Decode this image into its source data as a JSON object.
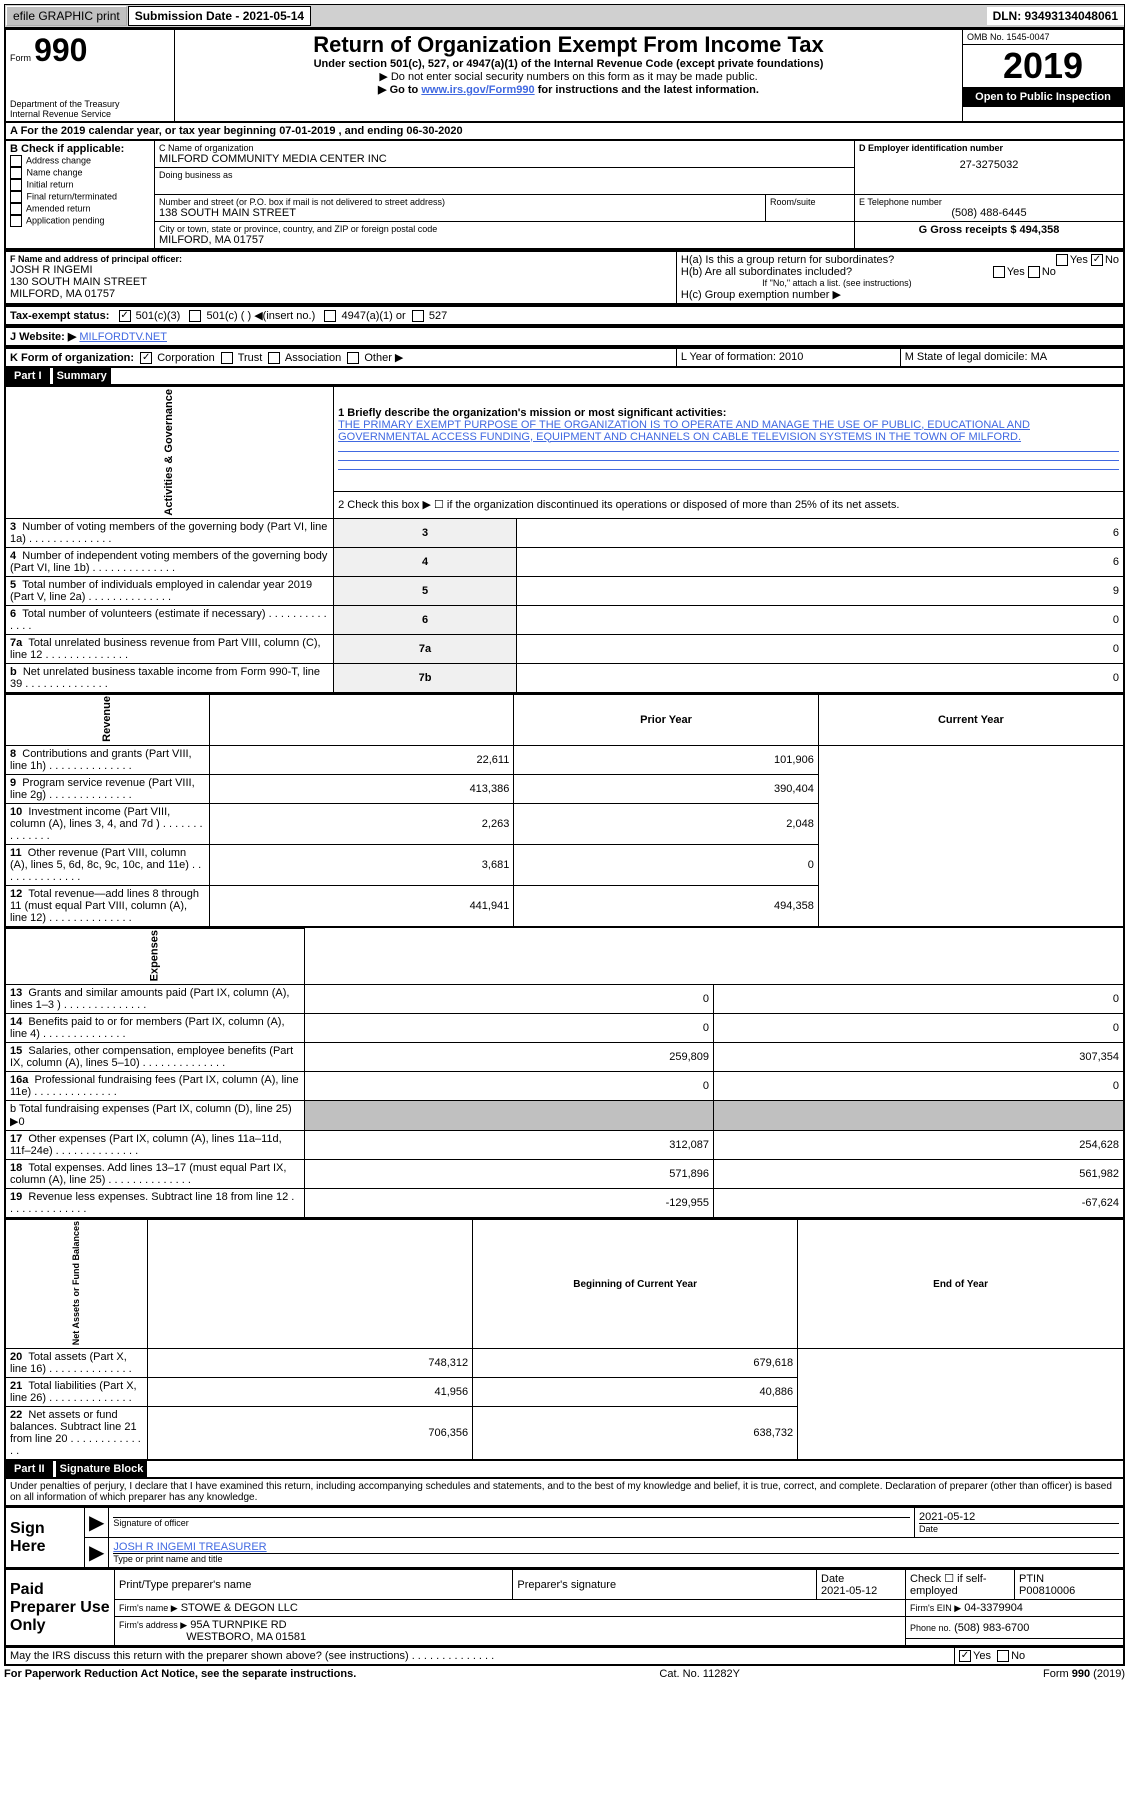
{
  "topbar": {
    "efile": "efile GRAPHIC print",
    "submission_label": "Submission Date - 2021-05-14",
    "dln": "DLN: 93493134048061"
  },
  "header": {
    "form_label": "Form",
    "form_number": "990",
    "dept": "Department of the Treasury",
    "irs": "Internal Revenue Service",
    "title": "Return of Organization Exempt From Income Tax",
    "subtitle": "Under section 501(c), 527, or 4947(a)(1) of the Internal Revenue Code (except private foundations)",
    "note1": "▶ Do not enter social security numbers on this form as it may be made public.",
    "note2_pre": "▶ Go to ",
    "note2_link": "www.irs.gov/Form990",
    "note2_post": " for instructions and the latest information.",
    "omb": "OMB No. 1545-0047",
    "year": "2019",
    "open": "Open to Public Inspection"
  },
  "sectionA": {
    "line": "A For the 2019 calendar year, or tax year beginning 07-01-2019   , and ending 06-30-2020"
  },
  "B": {
    "label": "B Check if applicable:",
    "opts": [
      "Address change",
      "Name change",
      "Initial return",
      "Final return/terminated",
      "Amended return",
      "Application pending"
    ]
  },
  "C": {
    "name_label": "C Name of organization",
    "name": "MILFORD COMMUNITY MEDIA CENTER INC",
    "dba_label": "Doing business as",
    "street_label": "Number and street (or P.O. box if mail is not delivered to street address)",
    "room_label": "Room/suite",
    "street": "138 SOUTH MAIN STREET",
    "city_label": "City or town, state or province, country, and ZIP or foreign postal code",
    "city": "MILFORD, MA  01757"
  },
  "D": {
    "label": "D Employer identification number",
    "value": "27-3275032"
  },
  "E": {
    "label": "E Telephone number",
    "value": "(508) 488-6445"
  },
  "G": {
    "label": "G Gross receipts $ 494,358"
  },
  "F": {
    "label": "F  Name and address of principal officer:",
    "name": "JOSH R INGEMI",
    "addr1": "130 SOUTH MAIN STREET",
    "addr2": "MILFORD, MA  01757"
  },
  "H": {
    "a": "H(a)  Is this a group return for subordinates?",
    "b": "H(b)  Are all subordinates included?",
    "b_note": "If \"No,\" attach a list. (see instructions)",
    "c": "H(c)  Group exemption number ▶"
  },
  "I": {
    "label": "Tax-exempt status:",
    "opt1": "501(c)(3)",
    "opt2": "501(c) (  ) ◀(insert no.)",
    "opt3": "4947(a)(1) or",
    "opt4": "527"
  },
  "J": {
    "label": "J   Website: ▶",
    "value": "MILFORDTV.NET"
  },
  "K": {
    "label": "K Form of organization:",
    "opts": [
      "Corporation",
      "Trust",
      "Association",
      "Other ▶"
    ]
  },
  "L": {
    "label": "L Year of formation: 2010"
  },
  "M": {
    "label": "M State of legal domicile: MA"
  },
  "part1": {
    "header": "Part I",
    "title": "Summary"
  },
  "activities": {
    "label": "Activities & Governance",
    "l1_label": "1  Briefly describe the organization's mission or most significant activities:",
    "l1_text": "THE PRIMARY EXEMPT PURPOSE OF THE ORGANIZATION IS TO OPERATE AND MANAGE THE USE OF PUBLIC, EDUCATIONAL AND GOVERNMENTAL ACCESS FUNDING, EQUIPMENT AND CHANNELS ON CABLE TELEVISION SYSTEMS IN THE TOWN OF MILFORD.",
    "l2": "2   Check this box ▶ ☐  if the organization discontinued its operations or disposed of more than 25% of its net assets.",
    "rows": [
      {
        "n": "3",
        "t": "Number of voting members of the governing body (Part VI, line 1a)",
        "box": "3",
        "v": "6"
      },
      {
        "n": "4",
        "t": "Number of independent voting members of the governing body (Part VI, line 1b)",
        "box": "4",
        "v": "6"
      },
      {
        "n": "5",
        "t": "Total number of individuals employed in calendar year 2019 (Part V, line 2a)",
        "box": "5",
        "v": "9"
      },
      {
        "n": "6",
        "t": "Total number of volunteers (estimate if necessary)",
        "box": "6",
        "v": "0"
      },
      {
        "n": "7a",
        "t": "Total unrelated business revenue from Part VIII, column (C), line 12",
        "box": "7a",
        "v": "0"
      },
      {
        "n": "b",
        "t": "Net unrelated business taxable income from Form 990-T, line 39",
        "box": "7b",
        "v": "0"
      }
    ]
  },
  "revenue": {
    "label": "Revenue",
    "header_prior": "Prior Year",
    "header_current": "Current Year",
    "rows": [
      {
        "n": "8",
        "t": "Contributions and grants (Part VIII, line 1h)",
        "p": "22,611",
        "c": "101,906"
      },
      {
        "n": "9",
        "t": "Program service revenue (Part VIII, line 2g)",
        "p": "413,386",
        "c": "390,404"
      },
      {
        "n": "10",
        "t": "Investment income (Part VIII, column (A), lines 3, 4, and 7d )",
        "p": "2,263",
        "c": "2,048"
      },
      {
        "n": "11",
        "t": "Other revenue (Part VIII, column (A), lines 5, 6d, 8c, 9c, 10c, and 11e)",
        "p": "3,681",
        "c": "0"
      },
      {
        "n": "12",
        "t": "Total revenue—add lines 8 through 11 (must equal Part VIII, column (A), line 12)",
        "p": "441,941",
        "c": "494,358"
      }
    ]
  },
  "expenses": {
    "label": "Expenses",
    "rows": [
      {
        "n": "13",
        "t": "Grants and similar amounts paid (Part IX, column (A), lines 1–3 )",
        "p": "0",
        "c": "0"
      },
      {
        "n": "14",
        "t": "Benefits paid to or for members (Part IX, column (A), line 4)",
        "p": "0",
        "c": "0"
      },
      {
        "n": "15",
        "t": "Salaries, other compensation, employee benefits (Part IX, column (A), lines 5–10)",
        "p": "259,809",
        "c": "307,354"
      },
      {
        "n": "16a",
        "t": "Professional fundraising fees (Part IX, column (A), line 11e)",
        "p": "0",
        "c": "0"
      }
    ],
    "l16b": "b  Total fundraising expenses (Part IX, column (D), line 25) ▶0",
    "rows2": [
      {
        "n": "17",
        "t": "Other expenses (Part IX, column (A), lines 11a–11d, 11f–24e)",
        "p": "312,087",
        "c": "254,628"
      },
      {
        "n": "18",
        "t": "Total expenses. Add lines 13–17 (must equal Part IX, column (A), line 25)",
        "p": "571,896",
        "c": "561,982"
      },
      {
        "n": "19",
        "t": "Revenue less expenses. Subtract line 18 from line 12",
        "p": "-129,955",
        "c": "-67,624"
      }
    ]
  },
  "netassets": {
    "label": "Net Assets or Fund Balances",
    "header_begin": "Beginning of Current Year",
    "header_end": "End of Year",
    "rows": [
      {
        "n": "20",
        "t": "Total assets (Part X, line 16)",
        "p": "748,312",
        "c": "679,618"
      },
      {
        "n": "21",
        "t": "Total liabilities (Part X, line 26)",
        "p": "41,956",
        "c": "40,886"
      },
      {
        "n": "22",
        "t": "Net assets or fund balances. Subtract line 21 from line 20",
        "p": "706,356",
        "c": "638,732"
      }
    ]
  },
  "part2": {
    "header": "Part II",
    "title": "Signature Block",
    "penalties": "Under penalties of perjury, I declare that I have examined this return, including accompanying schedules and statements, and to the best of my knowledge and belief, it is true, correct, and complete. Declaration of preparer (other than officer) is based on all information of which preparer has any knowledge."
  },
  "sign": {
    "label": "Sign Here",
    "sig_label": "Signature of officer",
    "date_label": "Date",
    "date": "2021-05-12",
    "name": "JOSH R INGEMI TREASURER",
    "name_label": "Type or print name and title"
  },
  "paid": {
    "label": "Paid Preparer Use Only",
    "col1": "Print/Type preparer's name",
    "col2": "Preparer's signature",
    "col3": "Date",
    "date": "2021-05-12",
    "col4": "Check ☐ if self-employed",
    "col5": "PTIN",
    "ptin": "P00810006",
    "firm_label": "Firm's name    ▶",
    "firm": "STOWE & DEGON LLC",
    "ein_label": "Firm's EIN ▶",
    "ein": "04-3379904",
    "addr_label": "Firm's address ▶",
    "addr1": "95A TURNPIKE RD",
    "addr2": "WESTBORO, MA  01581",
    "phone_label": "Phone no.",
    "phone": "(508) 983-6700"
  },
  "footer": {
    "discuss": "May the IRS discuss this return with the preparer shown above? (see instructions)",
    "paperwork": "For Paperwork Reduction Act Notice, see the separate instructions.",
    "cat": "Cat. No. 11282Y",
    "form": "Form 990 (2019)"
  }
}
